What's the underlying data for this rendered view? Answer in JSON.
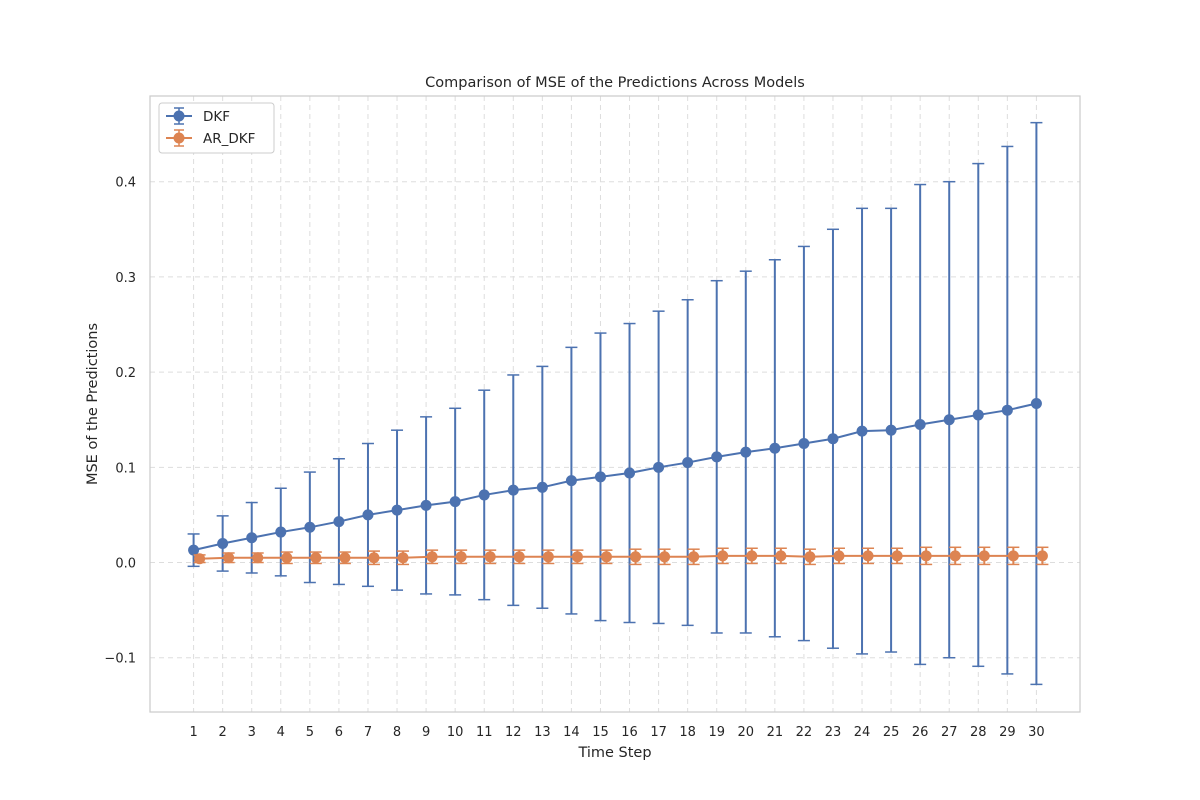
{
  "chart_data": {
    "type": "line",
    "title": "Comparison of MSE of the Predictions Across Models",
    "xlabel": "Time Step",
    "ylabel": "MSE of the Predictions",
    "x": [
      1,
      2,
      3,
      4,
      5,
      6,
      7,
      8,
      9,
      10,
      11,
      12,
      13,
      14,
      15,
      16,
      17,
      18,
      19,
      20,
      21,
      22,
      23,
      24,
      25,
      26,
      27,
      28,
      29,
      30
    ],
    "xlim": [
      -0.5,
      31.5
    ],
    "ylim": [
      -0.157,
      0.49
    ],
    "yticks": [
      -0.1,
      0.0,
      0.1,
      0.2,
      0.3,
      0.4
    ],
    "ytick_labels": [
      "−0.1",
      "0.0",
      "0.1",
      "0.2",
      "0.3",
      "0.4"
    ],
    "grid": true,
    "legend_position": "top-left",
    "series": [
      {
        "name": "DKF",
        "color": "#4c72b0",
        "values": [
          0.013,
          0.02,
          0.026,
          0.032,
          0.037,
          0.043,
          0.05,
          0.055,
          0.06,
          0.064,
          0.071,
          0.076,
          0.079,
          0.086,
          0.09,
          0.094,
          0.1,
          0.105,
          0.111,
          0.116,
          0.12,
          0.125,
          0.13,
          0.138,
          0.139,
          0.145,
          0.15,
          0.155,
          0.16,
          0.167
        ],
        "error": [
          0.017,
          0.029,
          0.037,
          0.046,
          0.058,
          0.066,
          0.075,
          0.084,
          0.093,
          0.098,
          0.11,
          0.121,
          0.127,
          0.14,
          0.151,
          0.157,
          0.164,
          0.171,
          0.185,
          0.19,
          0.198,
          0.207,
          0.22,
          0.234,
          0.233,
          0.252,
          0.25,
          0.264,
          0.277,
          0.295
        ]
      },
      {
        "name": "AR_DKF",
        "color": "#dd8452",
        "values": [
          0.004,
          0.005,
          0.005,
          0.005,
          0.005,
          0.005,
          0.005,
          0.005,
          0.006,
          0.006,
          0.006,
          0.006,
          0.006,
          0.006,
          0.006,
          0.006,
          0.006,
          0.006,
          0.007,
          0.007,
          0.007,
          0.006,
          0.007,
          0.007,
          0.007,
          0.007,
          0.007,
          0.007,
          0.007,
          0.007
        ],
        "error": [
          0.004,
          0.005,
          0.005,
          0.006,
          0.006,
          0.006,
          0.007,
          0.007,
          0.007,
          0.007,
          0.007,
          0.007,
          0.007,
          0.007,
          0.007,
          0.008,
          0.008,
          0.008,
          0.008,
          0.008,
          0.008,
          0.008,
          0.008,
          0.008,
          0.008,
          0.009,
          0.009,
          0.009,
          0.009,
          0.009
        ]
      }
    ]
  }
}
